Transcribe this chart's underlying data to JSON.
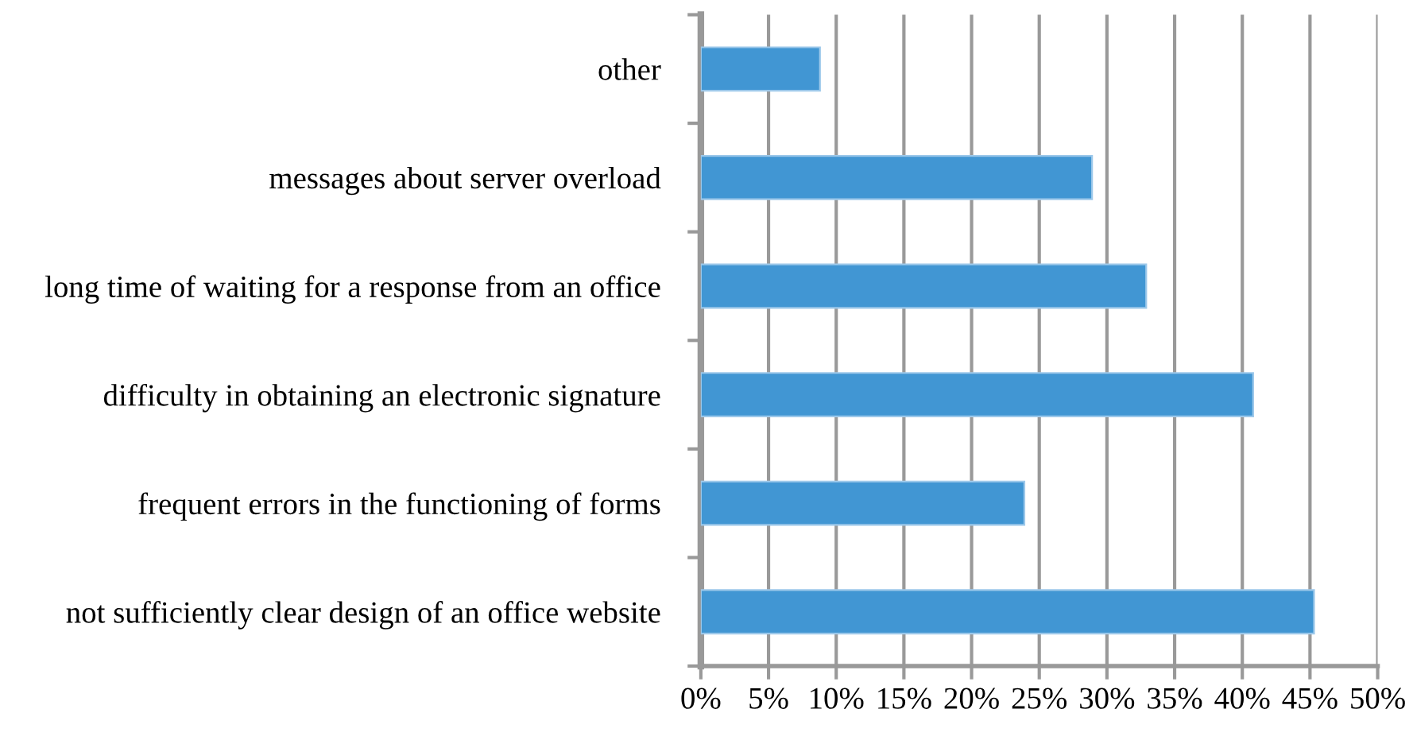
{
  "chart_data": {
    "type": "bar",
    "orientation": "horizontal",
    "categories": [
      "other",
      "messages about server overload",
      "long time of waiting for a response from an office",
      "difficulty in obtaining an electronic signature",
      "frequent errors in the functioning of forms",
      "not sufficiently clear design of an office website"
    ],
    "values": [
      8.8,
      28.9,
      32.9,
      40.8,
      23.9,
      45.3
    ],
    "color": "#4196d3",
    "xlim": [
      0,
      50
    ],
    "xticks": [
      {
        "value": 0,
        "label": "0%"
      },
      {
        "value": 5,
        "label": "5%"
      },
      {
        "value": 10,
        "label": "10%"
      },
      {
        "value": 15,
        "label": "15%"
      },
      {
        "value": 20,
        "label": "20%"
      },
      {
        "value": 25,
        "label": "25%"
      },
      {
        "value": 30,
        "label": "30%"
      },
      {
        "value": 35,
        "label": "35%"
      },
      {
        "value": 40,
        "label": "40%"
      },
      {
        "value": 45,
        "label": "45%"
      },
      {
        "value": 50,
        "label": "50%"
      }
    ],
    "grid": "x",
    "legend": false
  }
}
